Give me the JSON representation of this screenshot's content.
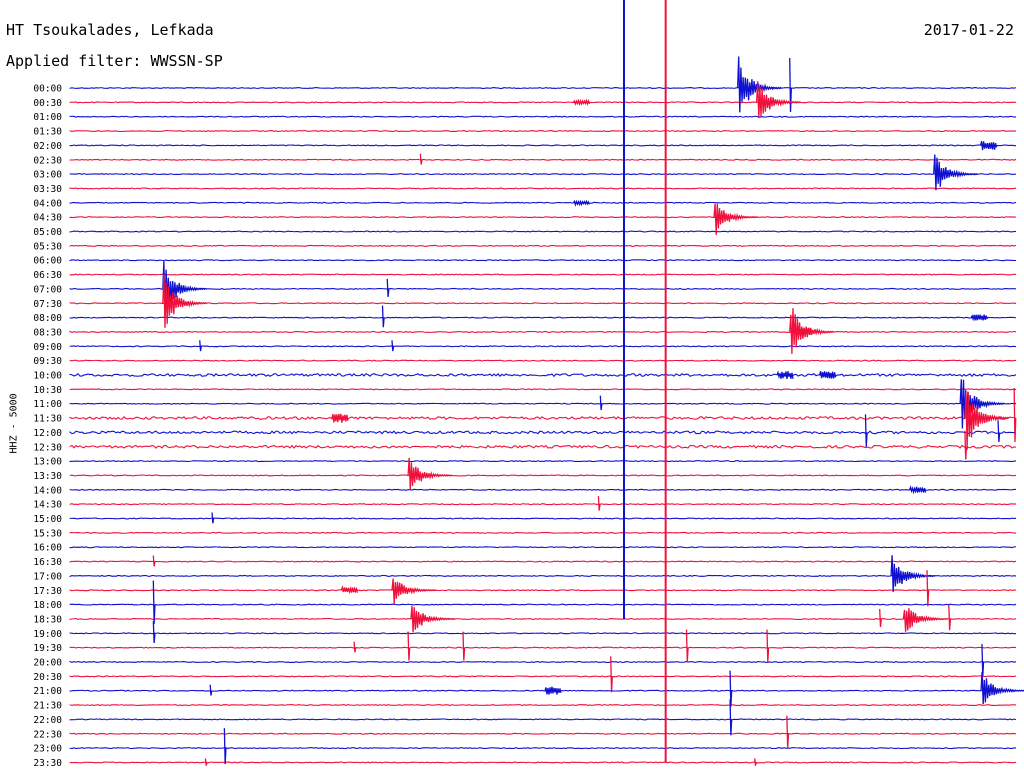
{
  "header": {
    "title": "HT Tsoukalades, Lefkada",
    "filter": "Applied filter: WWSSN-SP",
    "date": "2017-01-22"
  },
  "colors": {
    "blue": "#1010d0",
    "red": "#f0103c"
  },
  "chart_data": {
    "type": "line",
    "title": "HT Tsoukalades, Lefkada",
    "subtitle": "Applied filter: WWSSN-SP",
    "ylabel": "HHZ - 5000",
    "row_labels": [
      "00:00",
      "00:30",
      "01:00",
      "01:30",
      "02:00",
      "02:30",
      "03:00",
      "03:30",
      "04:00",
      "04:30",
      "05:00",
      "05:30",
      "06:00",
      "06:30",
      "07:00",
      "07:30",
      "08:00",
      "08:30",
      "09:00",
      "09:30",
      "10:00",
      "10:30",
      "11:00",
      "11:30",
      "12:00",
      "12:30",
      "13:00",
      "13:30",
      "14:00",
      "14:30",
      "15:00",
      "15:30",
      "16:00",
      "16:30",
      "17:00",
      "17:30",
      "18:00",
      "18:30",
      "19:00",
      "19:30",
      "20:00",
      "20:30",
      "21:00",
      "21:30",
      "22:00",
      "22:30",
      "23:00",
      "23:30"
    ],
    "series_colors": [
      "blue",
      "red"
    ],
    "events": [
      {
        "row": 0,
        "x": 0.705,
        "amp": 1.7,
        "kind": "quake"
      },
      {
        "row": 0,
        "x": 0.76,
        "amp": 1.5,
        "kind": "spike"
      },
      {
        "row": 1,
        "x": 0.725,
        "amp": 1.2,
        "kind": "quake"
      },
      {
        "row": 1,
        "x": 0.54,
        "amp": 0.2,
        "kind": "burst"
      },
      {
        "row": 4,
        "x": 0.97,
        "amp": 0.5,
        "kind": "burst"
      },
      {
        "row": 5,
        "x": 0.37,
        "amp": 0.3,
        "kind": "spike"
      },
      {
        "row": 6,
        "x": 0.912,
        "amp": 1.1,
        "kind": "quake"
      },
      {
        "row": 8,
        "x": 0.54,
        "amp": 0.2,
        "kind": "burst"
      },
      {
        "row": 9,
        "x": 0.68,
        "amp": 1.0,
        "kind": "quake"
      },
      {
        "row": 14,
        "x": 0.098,
        "amp": 1.4,
        "kind": "quake"
      },
      {
        "row": 14,
        "x": 0.335,
        "amp": 0.5,
        "kind": "spike"
      },
      {
        "row": 15,
        "x": 0.098,
        "amp": 1.5,
        "kind": "quake"
      },
      {
        "row": 16,
        "x": 0.33,
        "amp": 0.6,
        "kind": "spike"
      },
      {
        "row": 16,
        "x": 0.96,
        "amp": 0.3,
        "kind": "burst"
      },
      {
        "row": 17,
        "x": 0.76,
        "amp": 1.6,
        "kind": "quake"
      },
      {
        "row": 17,
        "x": 0.775,
        "amp": 0.4,
        "kind": "burst"
      },
      {
        "row": 18,
        "x": 0.137,
        "amp": 0.3,
        "kind": "spike"
      },
      {
        "row": 18,
        "x": 0.34,
        "amp": 0.3,
        "kind": "spike"
      },
      {
        "row": 20,
        "x": 0.755,
        "amp": 0.4,
        "kind": "burst"
      },
      {
        "row": 20,
        "x": 0.8,
        "amp": 0.4,
        "kind": "burst"
      },
      {
        "row": 22,
        "x": 0.94,
        "amp": 1.6,
        "kind": "quake"
      },
      {
        "row": 22,
        "x": 0.56,
        "amp": 0.4,
        "kind": "spike"
      },
      {
        "row": 23,
        "x": 0.285,
        "amp": 0.5,
        "kind": "burst"
      },
      {
        "row": 23,
        "x": 0.945,
        "amp": 1.8,
        "kind": "quake"
      },
      {
        "row": 23,
        "x": 0.997,
        "amp": 1.5,
        "kind": "spike"
      },
      {
        "row": 24,
        "x": 0.84,
        "amp": 0.9,
        "kind": "spike"
      },
      {
        "row": 24,
        "x": 0.98,
        "amp": 0.6,
        "kind": "spike"
      },
      {
        "row": 25,
        "x": 0.945,
        "amp": 0.8,
        "kind": "spike"
      },
      {
        "row": 27,
        "x": 0.357,
        "amp": 1.0,
        "kind": "quake"
      },
      {
        "row": 28,
        "x": 0.895,
        "amp": 0.3,
        "kind": "burst"
      },
      {
        "row": 29,
        "x": 0.558,
        "amp": 0.4,
        "kind": "spike"
      },
      {
        "row": 30,
        "x": 0.15,
        "amp": 0.3,
        "kind": "spike"
      },
      {
        "row": 33,
        "x": 0.088,
        "amp": 0.3,
        "kind": "spike"
      },
      {
        "row": 34,
        "x": 0.867,
        "amp": 1.2,
        "kind": "quake"
      },
      {
        "row": 35,
        "x": 0.34,
        "amp": 0.8,
        "kind": "quake"
      },
      {
        "row": 35,
        "x": 0.295,
        "amp": 0.3,
        "kind": "burst"
      },
      {
        "row": 35,
        "x": 0.905,
        "amp": 1.0,
        "kind": "spike"
      },
      {
        "row": 36,
        "x": 0.088,
        "amp": 1.2,
        "kind": "spike"
      },
      {
        "row": 37,
        "x": 0.36,
        "amp": 0.9,
        "kind": "quake"
      },
      {
        "row": 37,
        "x": 0.88,
        "amp": 0.9,
        "kind": "quake"
      },
      {
        "row": 37,
        "x": 0.855,
        "amp": 0.5,
        "kind": "spike"
      },
      {
        "row": 37,
        "x": 0.928,
        "amp": 0.7,
        "kind": "spike"
      },
      {
        "row": 38,
        "x": 0.088,
        "amp": 0.6,
        "kind": "spike"
      },
      {
        "row": 39,
        "x": 0.3,
        "amp": 0.3,
        "kind": "spike"
      },
      {
        "row": 39,
        "x": 0.357,
        "amp": 0.8,
        "kind": "spike"
      },
      {
        "row": 39,
        "x": 0.415,
        "amp": 0.8,
        "kind": "spike"
      },
      {
        "row": 39,
        "x": 0.651,
        "amp": 0.9,
        "kind": "spike"
      },
      {
        "row": 39,
        "x": 0.736,
        "amp": 0.9,
        "kind": "spike"
      },
      {
        "row": 40,
        "x": 0.963,
        "amp": 0.9,
        "kind": "spike"
      },
      {
        "row": 41,
        "x": 0.571,
        "amp": 1.0,
        "kind": "spike"
      },
      {
        "row": 42,
        "x": 0.148,
        "amp": 0.3,
        "kind": "spike"
      },
      {
        "row": 42,
        "x": 0.51,
        "amp": 0.4,
        "kind": "burst"
      },
      {
        "row": 42,
        "x": 0.697,
        "amp": 1.0,
        "kind": "spike"
      },
      {
        "row": 42,
        "x": 0.962,
        "amp": 1.0,
        "kind": "quake"
      },
      {
        "row": 44,
        "x": 0.697,
        "amp": 1.0,
        "kind": "spike"
      },
      {
        "row": 45,
        "x": 0.757,
        "amp": 0.9,
        "kind": "spike"
      },
      {
        "row": 46,
        "x": 0.163,
        "amp": 1.0,
        "kind": "spike"
      },
      {
        "row": 47,
        "x": 0.143,
        "amp": 0.2,
        "kind": "spike"
      },
      {
        "row": 47,
        "x": 0.723,
        "amp": 0.2,
        "kind": "spike"
      }
    ],
    "long_traces": [
      {
        "color": "blue",
        "x": 0.585,
        "from_row": 0,
        "to_row": 38
      },
      {
        "color": "red",
        "x": 0.629,
        "from_row": 0,
        "to_row": 48
      }
    ],
    "noisy_rows": [
      20,
      23,
      24,
      25
    ],
    "grid": false
  }
}
